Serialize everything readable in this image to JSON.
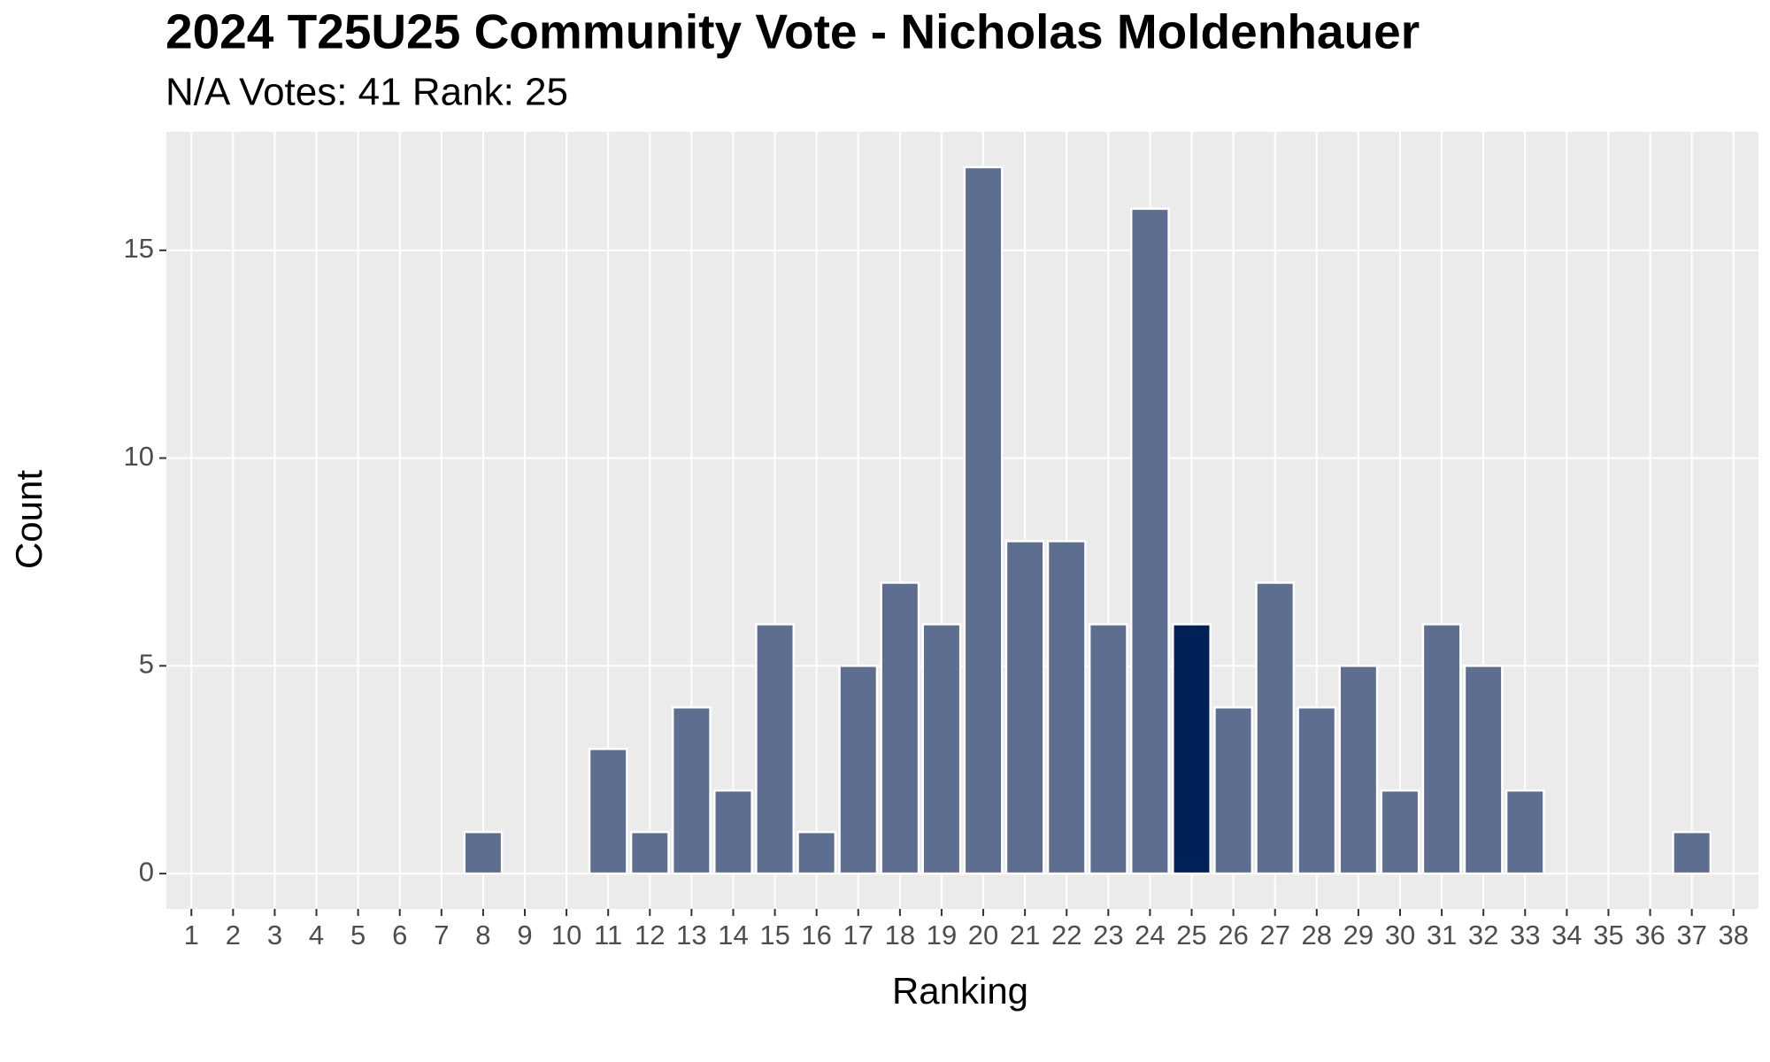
{
  "chart_data": {
    "type": "bar",
    "title": "2024 T25U25 Community Vote - Nicholas Moldenhauer",
    "subtitle": "N/A Votes: 41  Rank: 25",
    "x_label": "Ranking",
    "y_label": "Count",
    "categories": [
      "1",
      "2",
      "3",
      "4",
      "5",
      "6",
      "7",
      "8",
      "9",
      "10",
      "11",
      "12",
      "13",
      "14",
      "15",
      "16",
      "17",
      "18",
      "19",
      "20",
      "21",
      "22",
      "23",
      "24",
      "25",
      "26",
      "27",
      "28",
      "29",
      "30",
      "31",
      "32",
      "33",
      "34",
      "35",
      "36",
      "37",
      "38"
    ],
    "values": [
      0,
      0,
      0,
      0,
      0,
      0,
      0,
      1,
      0,
      0,
      3,
      1,
      4,
      2,
      6,
      1,
      5,
      7,
      6,
      17,
      8,
      8,
      6,
      16,
      6,
      4,
      7,
      4,
      5,
      2,
      6,
      5,
      2,
      0,
      0,
      0,
      1,
      0
    ],
    "colors": [
      "#5d6e91",
      "#5d6e91",
      "#5d6e91",
      "#5d6e91",
      "#5d6e91",
      "#5d6e91",
      "#5d6e91",
      "#5d6e91",
      "#5d6e91",
      "#5d6e91",
      "#5d6e91",
      "#5d6e91",
      "#5d6e91",
      "#5d6e91",
      "#5d6e91",
      "#5d6e91",
      "#5d6e91",
      "#5d6e91",
      "#5d6e91",
      "#5d6e91",
      "#5d6e91",
      "#5d6e91",
      "#5d6e91",
      "#5d6e91",
      "#002157",
      "#5d6e91",
      "#5d6e91",
      "#5d6e91",
      "#5d6e91",
      "#5d6e91",
      "#5d6e91",
      "#5d6e91",
      "#5d6e91",
      "#5d6e91",
      "#5d6e91",
      "#5d6e91",
      "#5d6e91",
      "#5d6e91"
    ],
    "ylim": [
      -0.85,
      17.85
    ],
    "yticks": [
      0,
      5,
      10,
      15
    ],
    "grid": true
  }
}
